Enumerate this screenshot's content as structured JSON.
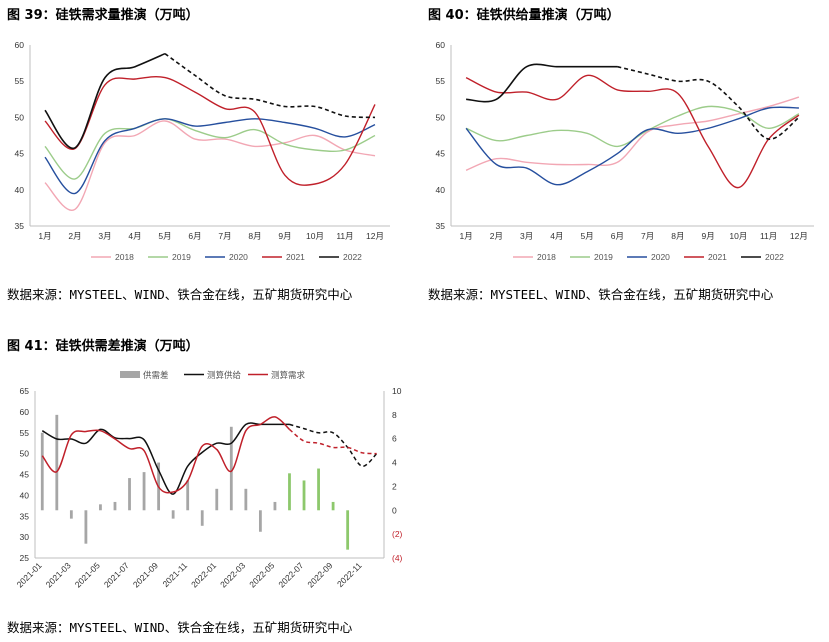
{
  "colors": {
    "s2018": "#f2a7b4",
    "s2019": "#9ccc8a",
    "s2020": "#264f9e",
    "s2021": "#c0202a",
    "s2022": "#111111",
    "bar_pos": "#a6a6a6",
    "bar_fcst": "#8dc86c",
    "axis": "#bfbfbf",
    "neg_label": "#c0202a"
  },
  "figures": [
    {
      "title": "图 39：硅铁需求量推演（万吨）",
      "source": "数据来源：MYSTEEL、WIND、铁合金在线，五矿期货研究中心"
    },
    {
      "title": "图 40：硅铁供给量推演（万吨）",
      "source": "数据来源：MYSTEEL、WIND、铁合金在线，五矿期货研究中心"
    },
    {
      "title": "图 41：硅铁供需差推演（万吨）",
      "source": "数据来源：MYSTEEL、WIND、铁合金在线，五矿期货研究中心"
    }
  ],
  "chart_data": [
    {
      "type": "line",
      "title": "图 39：硅铁需求量推演（万吨）",
      "categories": [
        "1月",
        "2月",
        "3月",
        "4月",
        "5月",
        "6月",
        "7月",
        "8月",
        "9月",
        "10月",
        "11月",
        "12月"
      ],
      "ylim": [
        35,
        60
      ],
      "yticks": [
        35,
        40,
        45,
        50,
        55,
        60
      ],
      "legend_position": "bottom",
      "series": [
        {
          "name": "2018",
          "values": [
            41,
            37.3,
            46.5,
            47.5,
            49.5,
            47,
            47,
            46,
            46.5,
            47.5,
            45.5,
            44.7
          ]
        },
        {
          "name": "2019",
          "values": [
            46,
            41.5,
            47.8,
            48.5,
            49.8,
            48.2,
            47.2,
            48.3,
            46.3,
            45.5,
            45.5,
            47.5
          ]
        },
        {
          "name": "2020",
          "values": [
            44.5,
            39.5,
            46.8,
            48.5,
            49.8,
            48.8,
            49.3,
            49.8,
            49.3,
            48.5,
            47.3,
            49
          ]
        },
        {
          "name": "2021",
          "values": [
            49.5,
            45.7,
            54.5,
            55.3,
            55.5,
            53.5,
            51.2,
            50.7,
            42,
            40.8,
            43.5,
            51.8
          ]
        },
        {
          "name": "2022",
          "values": [
            51,
            45.8,
            55.5,
            57,
            58.8,
            55.8,
            53,
            52.5,
            51.5,
            51.5,
            50.2,
            50
          ],
          "dashed_from_index": 4
        }
      ]
    },
    {
      "type": "line",
      "title": "图 40：硅铁供给量推演（万吨）",
      "categories": [
        "1月",
        "2月",
        "3月",
        "4月",
        "5月",
        "6月",
        "7月",
        "8月",
        "9月",
        "10月",
        "11月",
        "12月"
      ],
      "ylim": [
        35,
        60
      ],
      "yticks": [
        35,
        40,
        45,
        50,
        55,
        60
      ],
      "legend_position": "bottom",
      "series": [
        {
          "name": "2018",
          "values": [
            42.7,
            44.3,
            43.8,
            43.5,
            43.5,
            43.8,
            48,
            49,
            49.5,
            50.5,
            51.5,
            52.8
          ]
        },
        {
          "name": "2019",
          "values": [
            48.5,
            46.8,
            47.5,
            48.2,
            47.8,
            46,
            48.2,
            50.2,
            51.5,
            50.8,
            48.5,
            50.5
          ]
        },
        {
          "name": "2020",
          "values": [
            48.5,
            43.5,
            43,
            40.7,
            42.5,
            45,
            48.3,
            47.8,
            48.5,
            49.8,
            51.3,
            51.3
          ]
        },
        {
          "name": "2021",
          "values": [
            55.5,
            53.5,
            53.5,
            52.5,
            55.8,
            53.8,
            53.6,
            53.3,
            46,
            40.3,
            47,
            50.3
          ]
        },
        {
          "name": "2022",
          "values": [
            52.5,
            52.5,
            57,
            57,
            57,
            57,
            56,
            55,
            55,
            51.5,
            47,
            50
          ],
          "dashed_from_index": 5
        }
      ]
    },
    {
      "type": "bar",
      "title": "图 41：硅铁供需差推演（万吨）",
      "x": [
        "2021-01",
        "2021-02",
        "2021-03",
        "2021-04",
        "2021-05",
        "2021-06",
        "2021-07",
        "2021-08",
        "2021-09",
        "2021-10",
        "2021-11",
        "2021-12",
        "2022-01",
        "2022-02",
        "2022-03",
        "2022-04",
        "2022-05",
        "2022-06",
        "2022-07",
        "2022-08",
        "2022-09",
        "2022-10",
        "2022-11",
        "2022-12"
      ],
      "xticks": [
        "2021-01",
        "2021-03",
        "2021-05",
        "2021-07",
        "2021-09",
        "2021-11",
        "2022-01",
        "2022-03",
        "2022-05",
        "2022-07",
        "2022-09",
        "2022-11"
      ],
      "ylim_left": [
        25,
        65
      ],
      "yticks_left": [
        25,
        30,
        35,
        40,
        45,
        50,
        55,
        60,
        65
      ],
      "ylim_right": [
        -4,
        10
      ],
      "yticks_right": [
        "(4)",
        "(2)",
        "0",
        "2",
        "4",
        "6",
        "8",
        "10"
      ],
      "legend_position": "top",
      "forecast_from": "2022-06",
      "series": [
        {
          "name": "供需差",
          "axis": "right",
          "type": "bar",
          "values": [
            6.5,
            8,
            -0.7,
            -2.8,
            0.5,
            0.7,
            2.7,
            3.2,
            4,
            -0.7,
            2.5,
            -1.3,
            1.8,
            7,
            1.8,
            -1.8,
            0.7,
            3.1,
            2.5,
            3.5,
            0.7,
            -3.3,
            null,
            null
          ]
        },
        {
          "name": "测算供给",
          "axis": "left",
          "type": "line",
          "values": [
            55.5,
            53.5,
            53.5,
            52.5,
            55.8,
            53.8,
            53.6,
            53.3,
            46,
            40.3,
            47,
            50.3,
            52.5,
            52.5,
            57,
            57,
            57,
            57,
            56,
            55,
            55,
            51.5,
            47,
            50
          ]
        },
        {
          "name": "测算需求",
          "axis": "left",
          "type": "line",
          "values": [
            49.5,
            45.7,
            54.5,
            55.3,
            55.5,
            53.5,
            51.2,
            50.7,
            42,
            40.8,
            43.5,
            51.8,
            51,
            45.8,
            55.5,
            57,
            58.8,
            55.8,
            53,
            52.5,
            51.5,
            51.5,
            50.2,
            50
          ]
        }
      ]
    }
  ]
}
